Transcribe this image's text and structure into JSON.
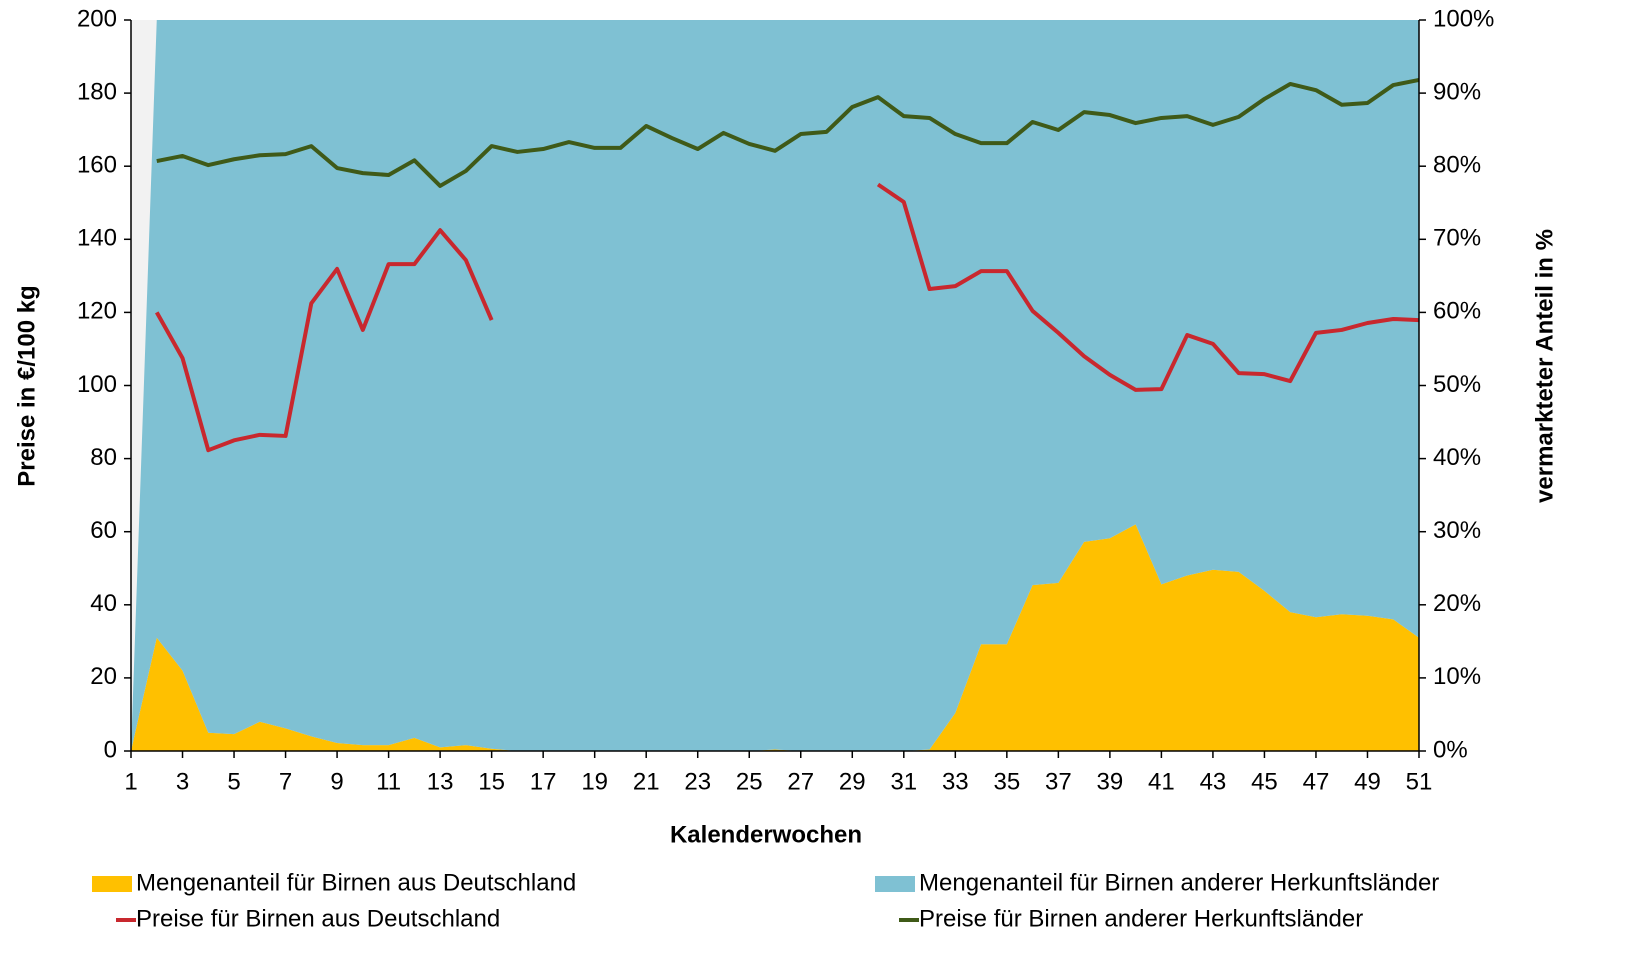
{
  "chart_data": {
    "type": "area_line",
    "x_label": "Kalenderwochen",
    "y_label": "Preise in €/100 kg",
    "y2_label": "vermarkteter Anteil in %",
    "x": [
      1,
      2,
      3,
      4,
      5,
      6,
      7,
      8,
      9,
      10,
      11,
      12,
      13,
      14,
      15,
      16,
      17,
      18,
      19,
      20,
      21,
      22,
      23,
      24,
      25,
      26,
      27,
      28,
      29,
      30,
      31,
      32,
      33,
      34,
      35,
      36,
      37,
      38,
      39,
      40,
      41,
      42,
      43,
      44,
      45,
      46,
      47,
      48,
      49,
      50,
      51
    ],
    "xlim": [
      1,
      51
    ],
    "xticks": [
      1,
      3,
      5,
      7,
      9,
      11,
      13,
      15,
      17,
      19,
      21,
      23,
      25,
      27,
      29,
      31,
      33,
      35,
      37,
      39,
      41,
      43,
      45,
      47,
      49,
      51
    ],
    "ylim": [
      0,
      200
    ],
    "yticks": [
      0,
      20,
      40,
      60,
      80,
      100,
      120,
      140,
      160,
      180,
      200
    ],
    "y2lim": [
      0,
      100
    ],
    "y2ticks": [
      {
        "value": 0,
        "label": "0%"
      },
      {
        "value": 10,
        "label": "10%"
      },
      {
        "value": 20,
        "label": "20%"
      },
      {
        "value": 30,
        "label": "30%"
      },
      {
        "value": 40,
        "label": "40%"
      },
      {
        "value": 50,
        "label": "50%"
      },
      {
        "value": 60,
        "label": "60%"
      },
      {
        "value": 70,
        "label": "70%"
      },
      {
        "value": 80,
        "label": "80%"
      },
      {
        "value": 90,
        "label": "90%"
      },
      {
        "value": 100,
        "label": "100%"
      }
    ],
    "series": [
      {
        "name": "Mengenanteil für Birnen aus Deutschland",
        "kind": "area",
        "axis": "y2",
        "color": "#ffc000",
        "values": [
          0,
          15.5,
          11,
          2.5,
          2.3,
          4,
          3.1,
          2,
          1.1,
          0.8,
          0.8,
          1.8,
          0.5,
          0.8,
          0.3,
          0,
          0,
          0,
          0,
          0,
          0,
          0,
          0,
          0,
          0,
          0.2,
          0,
          0,
          0,
          0,
          0,
          0.2,
          5.2,
          14.6,
          14.6,
          22.7,
          23,
          28.6,
          29.1,
          31,
          22.8,
          24,
          24.8,
          24.5,
          21.9,
          19,
          18.3,
          18.7,
          18.5,
          18,
          15.5
        ]
      },
      {
        "name": "Mengenanteil für Birnen anderer Herkunftsländer",
        "kind": "area",
        "axis": "y2",
        "color": "#7fc1d3",
        "values": [
          0,
          84.5,
          89,
          97.5,
          97.7,
          96,
          96.9,
          98,
          98.9,
          99.2,
          99.2,
          98.2,
          99.5,
          99.2,
          99.7,
          100,
          100,
          100,
          100,
          100,
          100,
          100,
          100,
          100,
          100,
          99.8,
          100,
          100,
          100,
          100,
          100,
          99.8,
          94.8,
          85.4,
          85.4,
          77.3,
          77,
          71.4,
          70.9,
          69,
          77.2,
          76,
          75.2,
          75.5,
          78.1,
          81,
          81.7,
          81.3,
          81.5,
          82,
          84.5
        ]
      },
      {
        "name": "Preise für Birnen aus Deutschland",
        "kind": "line",
        "color": "#c8282e",
        "values": [
          null,
          120,
          107.5,
          82.3,
          85,
          86.5,
          86.2,
          122.5,
          131.9,
          115.2,
          133.2,
          133.2,
          142.5,
          134.3,
          117.9,
          null,
          null,
          null,
          null,
          null,
          null,
          null,
          null,
          null,
          null,
          null,
          null,
          null,
          null,
          155,
          150.2,
          126.4,
          127.2,
          131.3,
          131.3,
          120.4,
          114.4,
          108,
          102.9,
          98.8,
          99,
          113.8,
          111.4,
          103.4,
          103.1,
          101.2,
          114.4,
          115.2,
          117.1,
          118.2,
          117.9
        ]
      },
      {
        "name": "Preise für Birnen anderer Herkunftsländer",
        "kind": "line",
        "color": "#3f5a18",
        "values": [
          null,
          161.4,
          162.8,
          160.3,
          161.9,
          163,
          163.3,
          165.5,
          159.5,
          158.1,
          157.6,
          161.6,
          154.6,
          158.7,
          165.5,
          163.9,
          164.7,
          166.6,
          165,
          165,
          171,
          167.7,
          164.7,
          169.1,
          166.1,
          164.2,
          168.8,
          169.4,
          176.2,
          178.9,
          173.7,
          173.2,
          168.8,
          166.3,
          166.3,
          172.1,
          169.9,
          174.8,
          174,
          171.8,
          173.2,
          173.7,
          171.3,
          173.5,
          178.4,
          182.5,
          180.8,
          176.8,
          177.3,
          182.2,
          183.6
        ]
      }
    ]
  }
}
